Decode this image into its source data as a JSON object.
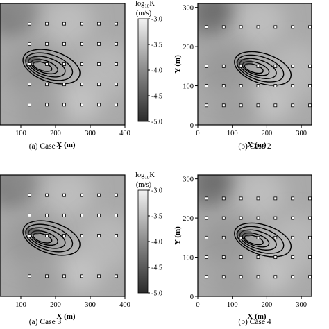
{
  "chart_data": [
    {
      "type": "heatmap",
      "caption": "(a) Case 1",
      "xlabel": "X (m)",
      "ylabel": "",
      "xticks": [
        "100",
        "200",
        "300",
        "400"
      ],
      "yticks": [],
      "colorbar": {
        "title": "log10K",
        "title_base": "log",
        "title_sub": "10",
        "title_k": "K",
        "unit": "(m/s)",
        "ticks": [
          "-3.0",
          "-3.5",
          "-4.0",
          "-4.5",
          "-5.0"
        ],
        "range": [
          -5.0,
          -3.0
        ]
      },
      "wells_x": [
        125,
        175,
        225,
        275,
        325,
        375
      ],
      "wells_y": [
        50,
        100,
        150,
        200,
        250
      ]
    },
    {
      "type": "heatmap",
      "caption": "(b) Case 2",
      "xlabel": "X (m)",
      "ylabel": "Y (m)",
      "xticks": [
        "0",
        "100",
        "200",
        "300"
      ],
      "yticks": [
        "0",
        "100",
        "200",
        "300"
      ],
      "colorbar": null,
      "wells_x": [
        25,
        75,
        125,
        175,
        225,
        275,
        325
      ],
      "wells_y": [
        50,
        100,
        150,
        250
      ]
    },
    {
      "type": "heatmap",
      "caption": "(a) Case 3",
      "xlabel": "X (m)",
      "ylabel": "",
      "xticks": [
        "100",
        "200",
        "300",
        "400"
      ],
      "yticks": [],
      "colorbar": {
        "title": "log10K",
        "title_base": "log",
        "title_sub": "10",
        "title_k": "K",
        "unit": "(m/s)",
        "ticks": [
          "-3.0",
          "-3.5",
          "-4.0",
          "-4.5",
          "-5.0"
        ],
        "range": [
          -5.0,
          -3.0
        ]
      },
      "wells_x": [
        125,
        175,
        225,
        275,
        325,
        375
      ],
      "wells_y": [
        50,
        150,
        200,
        250
      ]
    },
    {
      "type": "heatmap",
      "caption": "(b) Case 4",
      "xlabel": "X (m)",
      "ylabel": "Y (m)",
      "xticks": [
        "0",
        "100",
        "200",
        "300"
      ],
      "yticks": [
        "0",
        "100",
        "200",
        "300"
      ],
      "colorbar": null,
      "wells_x": [
        25,
        75,
        125,
        175,
        225,
        275,
        325
      ],
      "wells_y": [
        50,
        100,
        150,
        200,
        250
      ]
    }
  ]
}
